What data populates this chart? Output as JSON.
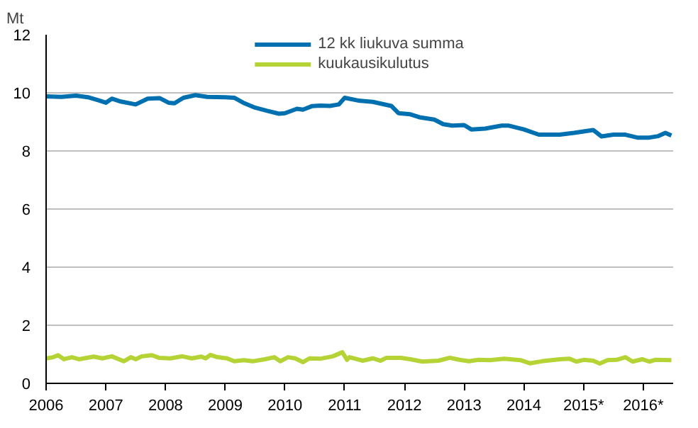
{
  "chart_data": {
    "type": "line",
    "ylabel": "Mt",
    "xlim": [
      2006,
      2016.5
    ],
    "ylim": [
      0,
      12
    ],
    "xticks": [
      2006,
      2007,
      2008,
      2009,
      2010,
      2011,
      2012,
      2013,
      2014,
      {
        "value": 2015,
        "label": "2015*"
      },
      {
        "value": 2016,
        "label": "2016*"
      }
    ],
    "yticks": [
      0,
      2,
      4,
      6,
      8,
      10,
      12
    ],
    "grid": "y",
    "legend": "top",
    "line_style": "solid",
    "marker": "none",
    "series": [
      {
        "name": "12 kk liukuva summa",
        "color": "#0070b0",
        "x": [
          2006.0,
          2006.25,
          2006.5,
          2006.7,
          2006.9,
          2007.0,
          2007.1,
          2007.25,
          2007.5,
          2007.7,
          2007.9,
          2008.05,
          2008.15,
          2008.3,
          2008.5,
          2008.7,
          2009.0,
          2009.15,
          2009.3,
          2009.5,
          2009.7,
          2009.9,
          2010.0,
          2010.2,
          2010.3,
          2010.45,
          2010.6,
          2010.75,
          2010.9,
          2011.0,
          2011.24,
          2011.47,
          2011.78,
          2011.9,
          2012.1,
          2012.25,
          2012.5,
          2012.65,
          2012.8,
          2013.0,
          2013.12,
          2013.35,
          2013.63,
          2013.75,
          2014.0,
          2014.25,
          2014.6,
          2014.84,
          2015.16,
          2015.3,
          2015.5,
          2015.7,
          2015.9,
          2016.1,
          2016.25,
          2016.37,
          2016.47
        ],
        "values": [
          9.88,
          9.86,
          9.9,
          9.85,
          9.73,
          9.66,
          9.8,
          9.7,
          9.6,
          9.8,
          9.82,
          9.66,
          9.64,
          9.83,
          9.92,
          9.86,
          9.85,
          9.83,
          9.66,
          9.49,
          9.38,
          9.28,
          9.3,
          9.45,
          9.42,
          9.54,
          9.56,
          9.55,
          9.6,
          9.83,
          9.73,
          9.69,
          9.55,
          9.3,
          9.26,
          9.16,
          9.08,
          8.92,
          8.87,
          8.89,
          8.74,
          8.77,
          8.87,
          8.87,
          8.74,
          8.56,
          8.56,
          8.62,
          8.72,
          8.5,
          8.56,
          8.56,
          8.46,
          8.46,
          8.51,
          8.62,
          8.53
        ]
      },
      {
        "name": "kuukausikulutus",
        "color": "#b5d334",
        "x": [
          2006.0,
          2006.12,
          2006.2,
          2006.3,
          2006.43,
          2006.55,
          2006.8,
          2006.94,
          2007.1,
          2007.3,
          2007.42,
          2007.5,
          2007.6,
          2007.77,
          2007.89,
          2008.08,
          2008.28,
          2008.44,
          2008.6,
          2008.67,
          2008.75,
          2008.87,
          2009.03,
          2009.15,
          2009.31,
          2009.46,
          2009.66,
          2009.82,
          2009.92,
          2010.05,
          2010.17,
          2010.3,
          2010.41,
          2010.6,
          2010.8,
          2010.96,
          2011.04,
          2011.08,
          2011.3,
          2011.47,
          2011.6,
          2011.7,
          2011.94,
          2012.1,
          2012.3,
          2012.57,
          2012.76,
          2012.92,
          2013.08,
          2013.24,
          2013.43,
          2013.67,
          2013.94,
          2014.1,
          2014.3,
          2014.6,
          2014.76,
          2014.88,
          2015.0,
          2015.16,
          2015.27,
          2015.4,
          2015.55,
          2015.7,
          2015.82,
          2015.98,
          2016.1,
          2016.2,
          2016.47
        ],
        "values": [
          0.86,
          0.9,
          0.97,
          0.83,
          0.9,
          0.83,
          0.92,
          0.86,
          0.93,
          0.76,
          0.9,
          0.83,
          0.93,
          0.97,
          0.88,
          0.86,
          0.93,
          0.86,
          0.92,
          0.86,
          0.98,
          0.9,
          0.86,
          0.76,
          0.8,
          0.76,
          0.83,
          0.9,
          0.76,
          0.9,
          0.86,
          0.73,
          0.86,
          0.85,
          0.93,
          1.07,
          0.81,
          0.9,
          0.78,
          0.86,
          0.78,
          0.88,
          0.88,
          0.83,
          0.75,
          0.78,
          0.88,
          0.81,
          0.76,
          0.81,
          0.8,
          0.85,
          0.8,
          0.69,
          0.76,
          0.83,
          0.85,
          0.75,
          0.81,
          0.78,
          0.68,
          0.8,
          0.81,
          0.9,
          0.75,
          0.83,
          0.75,
          0.81,
          0.8
        ]
      }
    ]
  }
}
